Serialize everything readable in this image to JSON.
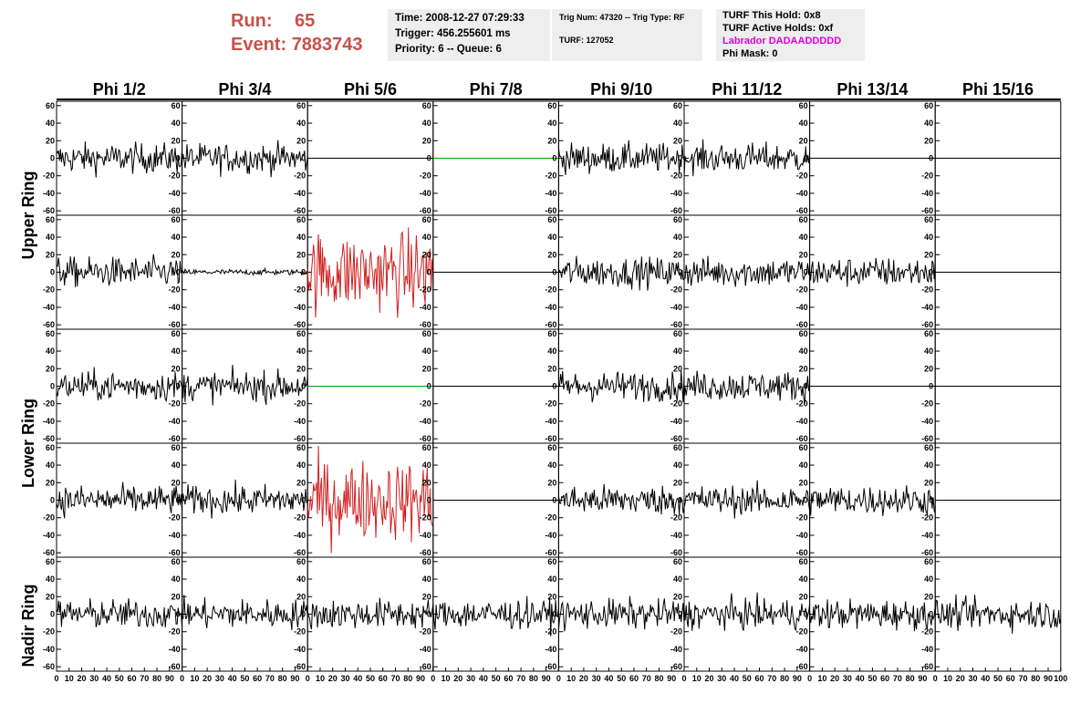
{
  "run": {
    "label": "Run:",
    "value": "65"
  },
  "event": {
    "label": "Event:",
    "value": "7883743"
  },
  "info1": {
    "time": "Time: 2008-12-27 07:29:33",
    "trigger": "Trigger: 456.255601 ms",
    "priority": "Priority: 6 -- Queue: 6"
  },
  "info2": {
    "trig": "Trig Num: 47320 -- Trig Type: RF",
    "turf": "TURF: 127052"
  },
  "info3": {
    "this_hold": "TURF This Hold: 0x8",
    "active_holds": "TURF Active Holds: 0xf",
    "labrador": "Labrador DADAADDDDD",
    "phi_mask": "Phi Mask: 0"
  },
  "colors": {
    "trace": "#000000",
    "highlight": "#d02020",
    "flat_green": "#00a000",
    "header_red": "#c9504a",
    "labrador": "#e000e0"
  },
  "chart_data": {
    "type": "line",
    "column_labels": [
      "Phi 1/2",
      "Phi 3/4",
      "Phi 5/6",
      "Phi 7/8",
      "Phi 9/10",
      "Phi 11/12",
      "Phi 13/14",
      "Phi 15/16"
    ],
    "ring_labels": [
      "Upper Ring",
      "Lower Ring",
      "Nadir Ring"
    ],
    "ylim": [
      -65,
      65
    ],
    "yticks": [
      -60,
      -40,
      -20,
      0,
      20,
      40,
      60
    ],
    "xlim": [
      0,
      100
    ],
    "xticks": [
      0,
      10,
      20,
      30,
      40,
      50,
      60,
      70,
      80,
      90,
      100
    ],
    "grid": false,
    "panels": [
      [
        "noise",
        "noise",
        "flat",
        "flat-green",
        "noise",
        "noise",
        "flat",
        "flat"
      ],
      [
        "noise",
        "weak",
        "red",
        "flat",
        "noise",
        "noise",
        "noise",
        "flat"
      ],
      [
        "noise",
        "noise",
        "flat-green",
        "flat",
        "noise",
        "noise",
        "flat",
        "flat"
      ],
      [
        "noise",
        "noise",
        "red",
        "flat",
        "noise",
        "noise",
        "noise",
        "flat"
      ],
      [
        "noise",
        "noise",
        "noise",
        "noise",
        "noise",
        "noise",
        "noise",
        "noise"
      ]
    ],
    "amplitude": {
      "noise": 15,
      "weak": 3,
      "red": 40
    }
  }
}
